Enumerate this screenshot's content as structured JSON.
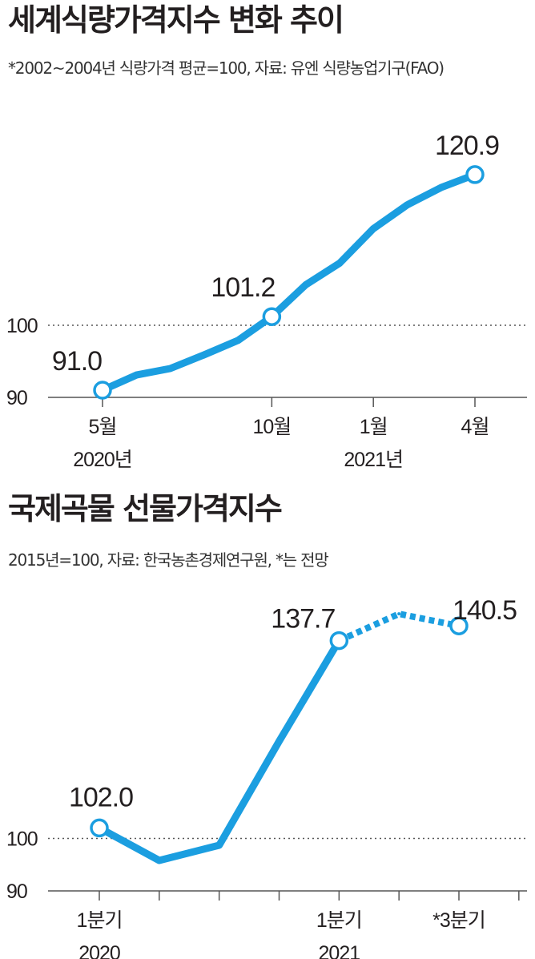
{
  "charts_meta": {
    "food": {
      "title": "세계식량가격지수 변화 추이",
      "subtitle": "*2002~2004년 식량가격 평균=100, 자료: 유엔 식량농업기구(FAO)"
    },
    "grain": {
      "title": "국제곡물 선물가격지수",
      "subtitle": "2015년=100, 자료: 한국농촌경제연구원, *는 전망"
    }
  },
  "colors": {
    "line": "#1b9ee0",
    "text": "#231f20",
    "axis": "#555555"
  },
  "chart_data": [
    {
      "type": "line",
      "title": "세계식량가격지수 변화 추이",
      "subtitle": "*2002~2004년 식량가격 평균=100, 자료: 유엔 식량농업기구(FAO)",
      "x": [
        "2020-05",
        "2020-06",
        "2020-07",
        "2020-08",
        "2020-09",
        "2020-10",
        "2020-11",
        "2020-12",
        "2021-01",
        "2021-02",
        "2021-03",
        "2021-04"
      ],
      "series": [
        {
          "values": [
            91.0,
            93.1,
            94.0,
            95.9,
            97.9,
            101.2,
            105.6,
            108.6,
            113.4,
            116.7,
            119.1,
            120.9
          ]
        }
      ],
      "ylim": [
        90,
        122
      ],
      "yticks": [
        {
          "value": 90,
          "label": "90"
        },
        {
          "value": 100,
          "label": "100"
        }
      ],
      "reference_line": 100,
      "xticks": [
        {
          "x": "2020-05",
          "label": "5월",
          "sublabel": "2020년"
        },
        {
          "x": "2020-10",
          "label": "10월",
          "sublabel": ""
        },
        {
          "x": "2021-01",
          "label": "1월",
          "sublabel": "2021년"
        },
        {
          "x": "2021-04",
          "label": "4월",
          "sublabel": ""
        }
      ],
      "point_labels": [
        {
          "x": "2020-05",
          "label": "91.0"
        },
        {
          "x": "2020-10",
          "label": "101.2"
        },
        {
          "x": "2021-04",
          "label": "120.9"
        }
      ],
      "grid": false,
      "xlabel": "",
      "ylabel": ""
    },
    {
      "type": "line",
      "title": "국제곡물 선물가격지수",
      "subtitle": "2015년=100, 자료: 한국농촌경제연구원, *는 전망",
      "x": [
        "2020 1분기",
        "2020 2분기",
        "2020 3분기",
        "2020 4분기",
        "2021 1분기",
        "2021 2분기",
        "2021 3분기"
      ],
      "series": [
        {
          "values": [
            102.0,
            95.8,
            98.7,
            118.5,
            137.7,
            142.8,
            140.5
          ],
          "forecast_from": "2021 1분기"
        }
      ],
      "ylim": [
        90,
        145
      ],
      "yticks": [
        {
          "value": 90,
          "label": "90"
        },
        {
          "value": 100,
          "label": "100"
        }
      ],
      "reference_line": 100,
      "xticks": [
        {
          "x": "2020 1분기",
          "label": "1분기",
          "sublabel": "2020"
        },
        {
          "x": "2021 1분기",
          "label": "1분기",
          "sublabel": "2021"
        },
        {
          "x": "2021 3분기",
          "label": "*3분기",
          "sublabel": ""
        }
      ],
      "minor_tick_count": 8,
      "point_labels": [
        {
          "x": "2020 1분기",
          "label": "102.0"
        },
        {
          "x": "2021 1분기",
          "label": "137.7"
        },
        {
          "x": "2021 3분기",
          "label": "140.5"
        }
      ],
      "grid": false,
      "xlabel": "",
      "ylabel": ""
    }
  ]
}
